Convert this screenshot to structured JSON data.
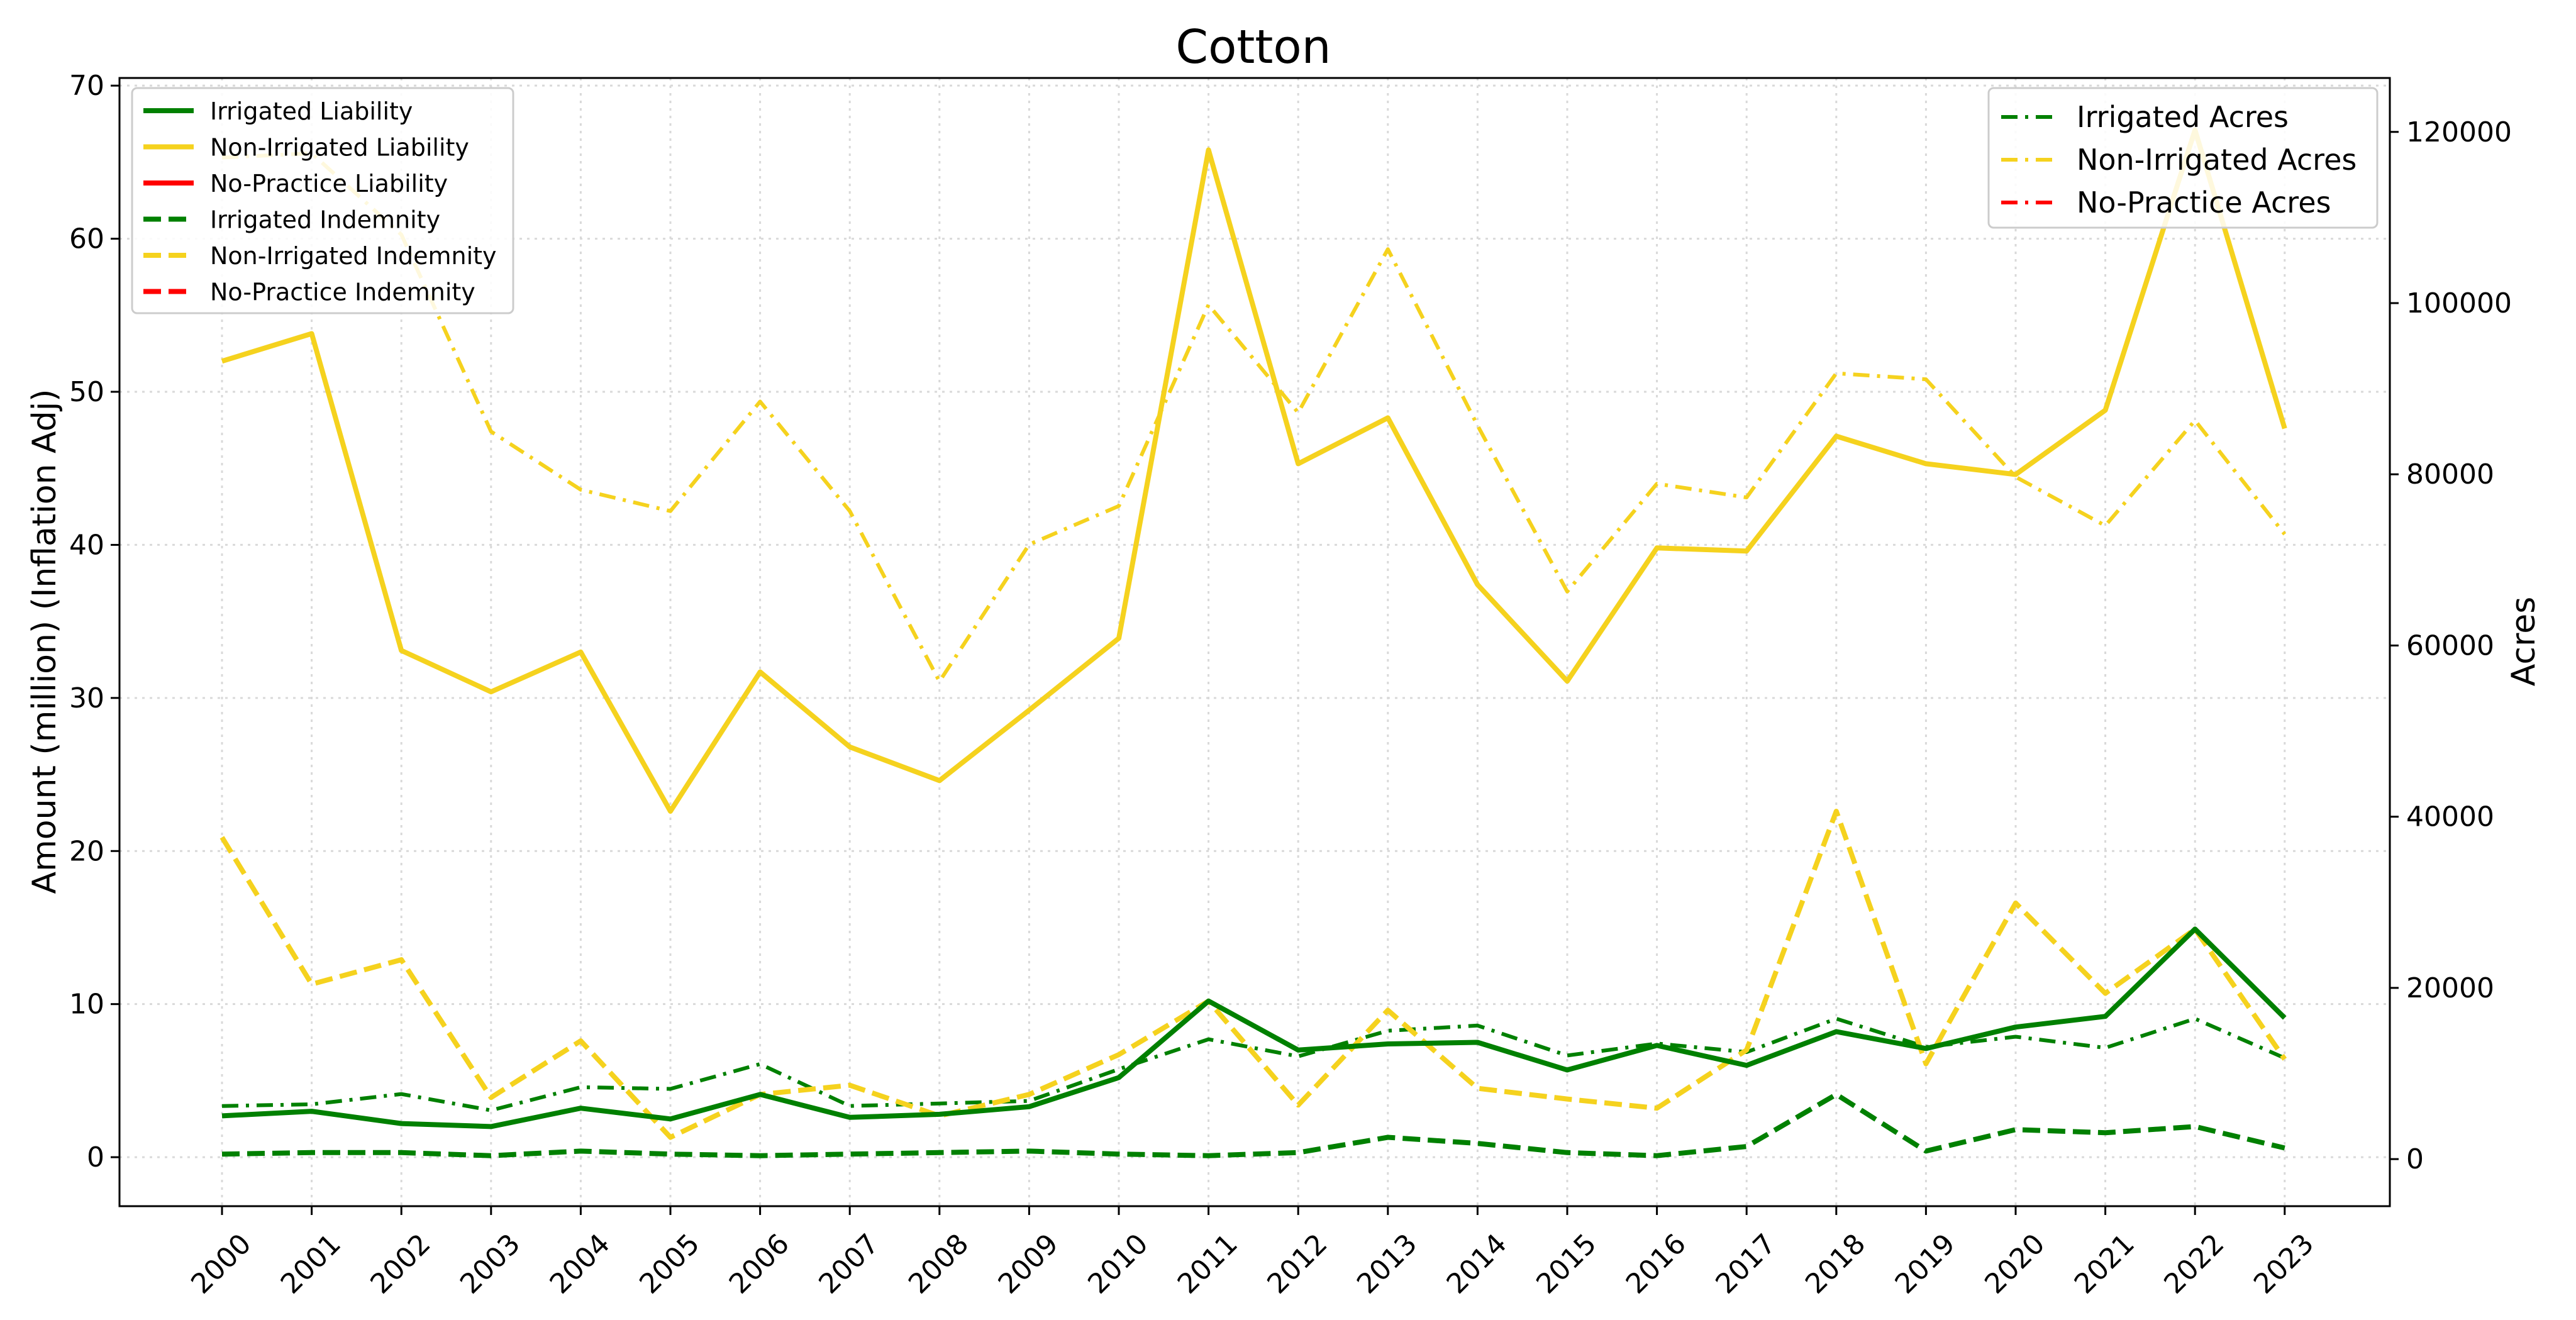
{
  "chart_data": {
    "type": "line",
    "title": "Cotton",
    "xlabel": "",
    "ylabel": "Amount (million) (Inflation Adj)",
    "y2label": "Acres",
    "grid": true,
    "categories": [
      "2000",
      "2001",
      "2002",
      "2003",
      "2004",
      "2005",
      "2006",
      "2007",
      "2008",
      "2009",
      "2010",
      "2011",
      "2012",
      "2013",
      "2014",
      "2015",
      "2016",
      "2017",
      "2018",
      "2019",
      "2020",
      "2021",
      "2022",
      "2023"
    ],
    "ylim": [
      -3.2,
      70.5
    ],
    "y2lim": [
      -5500,
      126300
    ],
    "yticks": [
      0,
      10,
      20,
      30,
      40,
      50,
      60,
      70
    ],
    "y2ticks": [
      0,
      20000,
      40000,
      60000,
      80000,
      100000,
      120000
    ],
    "legend_left_position": "upper left",
    "legend_right_position": "upper right",
    "series_left": [
      {
        "name": "Irrigated Liability",
        "color": "#008000",
        "dash": "solid",
        "values": [
          2.7,
          3.0,
          2.2,
          2.0,
          3.2,
          2.5,
          4.1,
          2.6,
          2.8,
          3.3,
          5.2,
          10.2,
          7.0,
          7.4,
          7.5,
          5.7,
          7.3,
          6.0,
          8.2,
          7.1,
          8.5,
          9.2,
          14.9,
          9.1
        ]
      },
      {
        "name": "Non-Irrigated Liability",
        "color": "#FFD700",
        "dash": "solid",
        "values": [
          52.0,
          53.8,
          33.1,
          30.4,
          33.0,
          22.6,
          31.7,
          26.8,
          24.6,
          29.2,
          33.9,
          65.8,
          45.3,
          48.3,
          37.4,
          31.1,
          39.8,
          39.6,
          47.1,
          45.3,
          44.6,
          48.8,
          67.1,
          47.6
        ]
      },
      {
        "name": "No-Practice Liability",
        "color": "#FF0000",
        "dash": "solid",
        "values": []
      },
      {
        "name": "Irrigated Indemnity",
        "color": "#008000",
        "dash": "dashed",
        "values": [
          0.2,
          0.3,
          0.3,
          0.1,
          0.4,
          0.2,
          0.1,
          0.2,
          0.3,
          0.4,
          0.2,
          0.1,
          0.3,
          1.3,
          0.9,
          0.3,
          0.1,
          0.7,
          4.1,
          0.4,
          1.8,
          1.6,
          2.0,
          0.6
        ]
      },
      {
        "name": "Non-Irrigated Indemnity",
        "color": "#FFD700",
        "dash": "dashed",
        "values": [
          20.9,
          11.3,
          12.9,
          3.9,
          7.6,
          1.3,
          4.1,
          4.7,
          2.7,
          4.1,
          6.7,
          10.2,
          3.4,
          9.6,
          4.5,
          3.8,
          3.2,
          7.0,
          22.6,
          6.1,
          16.6,
          10.7,
          14.9,
          6.4
        ]
      },
      {
        "name": "No-Practice Indemnity",
        "color": "#FF0000",
        "dash": "dashed",
        "values": []
      }
    ],
    "series_right": [
      {
        "name": "Irrigated Acres",
        "color": "#008000",
        "dash": "dashdot",
        "values": [
          6200,
          6400,
          7600,
          5700,
          8400,
          8200,
          11100,
          6200,
          6500,
          6800,
          10500,
          14000,
          12000,
          15000,
          15600,
          12100,
          13500,
          12500,
          16400,
          13100,
          14300,
          13000,
          16400,
          11800
        ]
      },
      {
        "name": "Non-Irrigated Acres",
        "color": "#FFD700",
        "dash": "dashdot",
        "values": [
          117000,
          117500,
          108000,
          85000,
          78200,
          75700,
          88500,
          75700,
          55800,
          71800,
          76300,
          99800,
          87200,
          106300,
          85700,
          66300,
          78900,
          77300,
          91800,
          91100,
          79700,
          74000,
          86300,
          73000
        ]
      },
      {
        "name": "No-Practice Acres",
        "color": "#FF0000",
        "dash": "dashdot",
        "values": []
      }
    ]
  }
}
